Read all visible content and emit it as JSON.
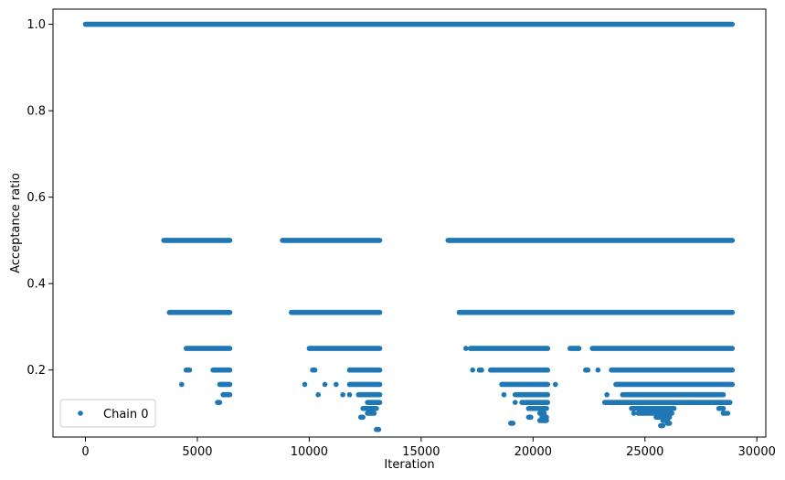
{
  "chart_data": {
    "type": "scatter",
    "title": "",
    "xlabel": "Iteration",
    "ylabel": "Acceptance ratio",
    "xlim": [
      -1450,
      30400
    ],
    "ylim": [
      0.045,
      1.035
    ],
    "xticks": [
      0,
      5000,
      10000,
      15000,
      20000,
      25000,
      30000
    ],
    "yticks": [
      0.2,
      0.4,
      0.6,
      0.8,
      1.0
    ],
    "ytick_labels": [
      "0.2",
      "0.4",
      "0.6",
      "0.8",
      "1.0"
    ],
    "grid": false,
    "legend_position": "lower-left",
    "color": "#1f77b4",
    "series": [
      {
        "name": "Chain 0",
        "marker": "point",
        "bands": [
          {
            "y": 1.0,
            "ranges": [
              [
                0,
                28900
              ]
            ]
          },
          {
            "y": 0.5,
            "ranges": [
              [
                3500,
                6450
              ],
              [
                8800,
                13150
              ],
              [
                16200,
                28900
              ]
            ]
          },
          {
            "y": 0.3333,
            "ranges": [
              [
                3750,
                6450
              ],
              [
                9200,
                13150
              ],
              [
                16700,
                28900
              ]
            ]
          },
          {
            "y": 0.25,
            "ranges": [
              [
                4500,
                6450
              ],
              [
                10000,
                13150
              ],
              [
                17200,
                20650
              ],
              [
                21650,
                22050
              ],
              [
                22650,
                28900
              ]
            ]
          },
          {
            "y": 0.2,
            "ranges": [
              [
                4500,
                4650
              ],
              [
                5700,
                6450
              ],
              [
                10150,
                10250
              ],
              [
                11800,
                13150
              ],
              [
                17600,
                17700
              ],
              [
                18100,
                20650
              ],
              [
                22350,
                22450
              ],
              [
                23500,
                28900
              ]
            ]
          },
          {
            "y": 0.1667,
            "ranges": [
              [
                6000,
                6450
              ],
              [
                11800,
                13150
              ],
              [
                18600,
                20650
              ],
              [
                23700,
                28900
              ]
            ]
          },
          {
            "y": 0.1429,
            "ranges": [
              [
                6150,
                6450
              ],
              [
                12200,
                13150
              ],
              [
                19200,
                20650
              ],
              [
                24000,
                28500
              ]
            ]
          },
          {
            "y": 0.125,
            "ranges": [
              [
                5900,
                6000
              ],
              [
                12600,
                13150
              ],
              [
                19500,
                20650
              ],
              [
                23200,
                28800
              ]
            ]
          },
          {
            "y": 0.1111,
            "ranges": [
              [
                12400,
                13000
              ],
              [
                19800,
                20600
              ],
              [
                24400,
                26300
              ],
              [
                28300,
                28500
              ]
            ]
          },
          {
            "y": 0.1,
            "ranges": [
              [
                12600,
                12900
              ],
              [
                20300,
                20500
              ],
              [
                24700,
                26200
              ],
              [
                28500,
                28600
              ]
            ]
          },
          {
            "y": 0.0909,
            "ranges": [
              [
                12300,
                12400
              ],
              [
                19800,
                19900
              ],
              [
                20400,
                20600
              ],
              [
                25500,
                26100
              ]
            ]
          },
          {
            "y": 0.0833,
            "ranges": [
              [
                20300,
                20600
              ],
              [
                25800,
                26000
              ]
            ]
          },
          {
            "y": 0.0769,
            "ranges": [
              [
                19000,
                19100
              ],
              [
                26000,
                26100
              ]
            ]
          },
          {
            "y": 0.0714,
            "ranges": [
              [
                25700,
                25800
              ]
            ]
          },
          {
            "y": 0.0625,
            "ranges": [
              [
                13000,
                13100
              ]
            ]
          }
        ],
        "scattered_points": [
          [
            4300,
            0.1667
          ],
          [
            6200,
            0.1667
          ],
          [
            5800,
            0.2
          ],
          [
            9800,
            0.1667
          ],
          [
            10400,
            0.1429
          ],
          [
            10700,
            0.1667
          ],
          [
            11200,
            0.1667
          ],
          [
            11500,
            0.1429
          ],
          [
            11800,
            0.1429
          ],
          [
            17000,
            0.25
          ],
          [
            17300,
            0.2
          ],
          [
            18700,
            0.1429
          ],
          [
            19200,
            0.125
          ],
          [
            21000,
            0.1667
          ],
          [
            22000,
            0.25
          ],
          [
            22900,
            0.2
          ],
          [
            23300,
            0.1429
          ],
          [
            23800,
            0.125
          ],
          [
            24500,
            0.1
          ],
          [
            27200,
            0.125
          ],
          [
            27600,
            0.1429
          ],
          [
            28700,
            0.1
          ]
        ]
      }
    ]
  }
}
